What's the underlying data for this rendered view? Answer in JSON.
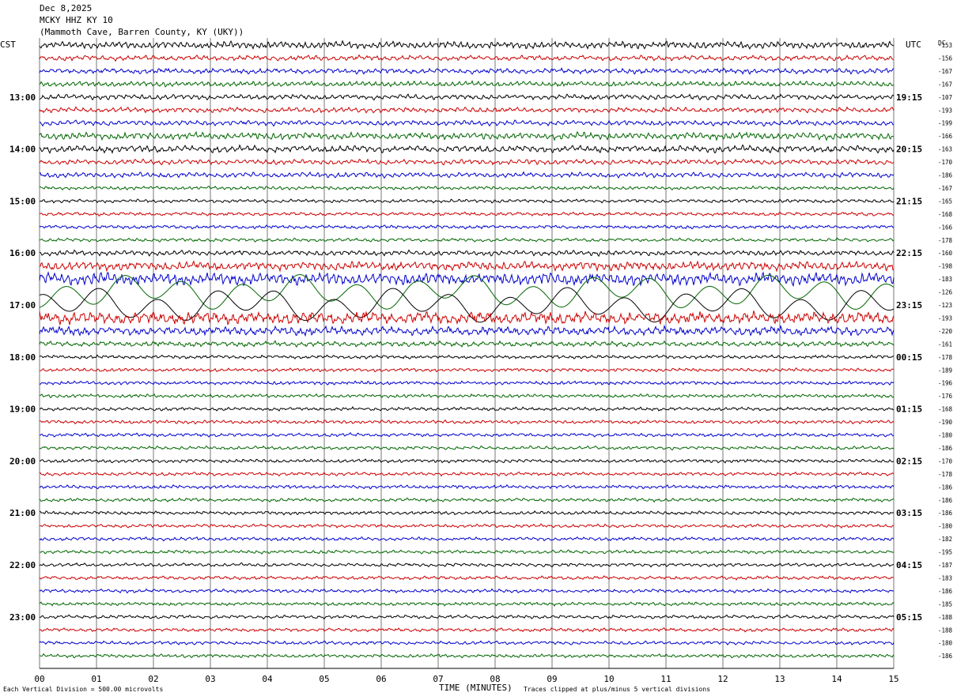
{
  "header": {
    "date": "Dec 8,2025",
    "station": "MCKY HHZ KY 10",
    "location": "(Mammoth Cave, Barren County, KY (UKY))"
  },
  "left_zone_label": "CST",
  "right_zone_label": "UTC",
  "dc_label": "DC",
  "footer": {
    "scale_note": "Each Vertical Division =  500.00 microvolts",
    "xlabel": "TIME (MINUTES)",
    "clip_note": "Traces clipped at plus/minus 5 vertical divisions"
  },
  "chart_data": {
    "type": "line",
    "chart_kind": "helicorder",
    "x_range": [
      0,
      15
    ],
    "x_ticks": [
      "00",
      "01",
      "02",
      "03",
      "04",
      "05",
      "06",
      "07",
      "08",
      "09",
      "10",
      "11",
      "12",
      "13",
      "14",
      "15"
    ],
    "left_hour_labels": [
      "13:00",
      "14:00",
      "15:00",
      "16:00",
      "17:00",
      "18:00",
      "19:00",
      "20:00",
      "21:00",
      "22:00",
      "23:00"
    ],
    "right_hour_labels": [
      "19:15",
      "20:15",
      "21:15",
      "22:15",
      "23:15",
      "00:15",
      "01:15",
      "02:15",
      "03:15",
      "04:15",
      "05:15"
    ],
    "first_hour_row": 4,
    "rows_per_hour": 4,
    "trace_count": 48,
    "trace_colors": [
      "#000000",
      "#cc0000",
      "#0000cc",
      "#006600"
    ],
    "dc_offsets": [
      "-153",
      "-156",
      "-167",
      "-167",
      "-107",
      "-193",
      "-199",
      "-166",
      "-163",
      "-170",
      "-186",
      "-167",
      "-165",
      "-168",
      "-166",
      "-178",
      "-160",
      "-198",
      "-183",
      "-126",
      "-123",
      "-193",
      "-220",
      "-161",
      "-178",
      "-189",
      "-196",
      "-176",
      "-168",
      "-190",
      "-180",
      "-186",
      "-170",
      "-178",
      "-186",
      "-186",
      "-186",
      "-180",
      "-182",
      "-195",
      "-187",
      "-183",
      "-186",
      "-185",
      "-188",
      "-188",
      "-180",
      "-186"
    ],
    "trace_amplitudes": [
      4,
      3,
      3,
      3,
      3,
      3,
      3,
      4,
      4,
      3,
      3,
      2,
      2,
      2,
      2,
      2,
      3,
      5,
      7,
      22,
      22,
      7,
      5,
      3,
      2,
      2,
      2,
      2,
      2,
      2,
      2,
      2,
      2,
      2,
      2,
      2,
      2,
      2,
      2,
      2,
      2,
      2,
      2,
      2,
      2,
      2,
      2,
      2
    ],
    "grid": true
  }
}
